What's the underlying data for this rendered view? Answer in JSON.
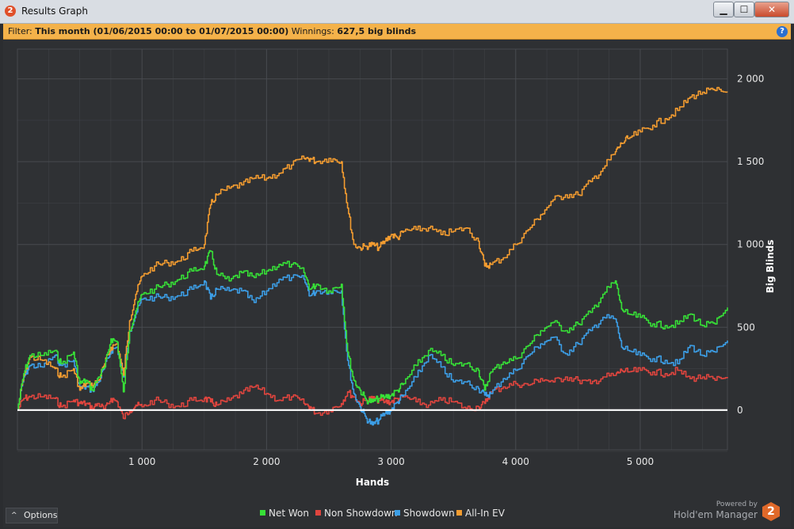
{
  "window": {
    "title": "Results Graph",
    "app_icon": "hm2-logo-icon",
    "controls": {
      "minimize": "▁",
      "maximize": "☐",
      "close": "✕"
    }
  },
  "filter": {
    "prefix": "Filter:",
    "range": "This month (01/06/2015 00:00 to 01/07/2015 00:00)",
    "winnings_label": "Winnings:",
    "winnings_value": "627,5 big blinds",
    "help": "?"
  },
  "footer": {
    "options_label": "Options",
    "powered_by": "Powered by",
    "brand": "Hold'em Manager",
    "brand_logo_text": "2"
  },
  "colors": {
    "net_won": "#37e037",
    "non_showdown": "#e0453e",
    "showdown": "#3c9ee6",
    "all_in_ev": "#f39c30",
    "zero_line": "#ffffff",
    "grid": "#4a4d52",
    "text": "#e8e8e8"
  },
  "chart_data": {
    "type": "line",
    "title": "",
    "xlabel": "Hands",
    "ylabel": "Big Blinds",
    "xlim": [
      0,
      5700
    ],
    "ylim": [
      -240,
      2180
    ],
    "x_ticks": [
      1000,
      2000,
      3000,
      4000,
      5000
    ],
    "x_tick_labels": [
      "1 000",
      "2 000",
      "3 000",
      "4 000",
      "5 000"
    ],
    "y_ticks": [
      0,
      500,
      1000,
      1500,
      2000
    ],
    "y_tick_labels": [
      "0",
      "500",
      "1 000",
      "1 500",
      "2 000"
    ],
    "grid": true,
    "legend": "bottom-center",
    "x": [
      0,
      50,
      100,
      200,
      300,
      350,
      450,
      500,
      550,
      600,
      650,
      700,
      750,
      800,
      850,
      900,
      950,
      1000,
      1100,
      1200,
      1300,
      1400,
      1500,
      1550,
      1600,
      1700,
      1800,
      1900,
      2000,
      2100,
      2200,
      2300,
      2350,
      2400,
      2500,
      2600,
      2650,
      2700,
      2750,
      2800,
      2850,
      2900,
      2950,
      3000,
      3050,
      3100,
      3200,
      3300,
      3400,
      3500,
      3600,
      3700,
      3750,
      3800,
      3900,
      4000,
      4100,
      4200,
      4300,
      4400,
      4500,
      4600,
      4700,
      4800,
      4850,
      4900,
      5000,
      5100,
      5200,
      5300,
      5400,
      5500,
      5600,
      5700
    ],
    "series": [
      {
        "name": "Net Won",
        "color": "#37e037",
        "values": [
          0,
          220,
          330,
          330,
          360,
          280,
          350,
          160,
          180,
          120,
          200,
          260,
          430,
          410,
          110,
          480,
          600,
          700,
          730,
          760,
          790,
          840,
          870,
          960,
          820,
          780,
          830,
          800,
          840,
          880,
          880,
          830,
          730,
          760,
          720,
          760,
          350,
          180,
          120,
          60,
          50,
          70,
          80,
          90,
          120,
          160,
          270,
          360,
          330,
          270,
          280,
          240,
          120,
          230,
          290,
          310,
          390,
          480,
          530,
          480,
          520,
          590,
          700,
          780,
          610,
          580,
          560,
          520,
          510,
          520,
          580,
          510,
          520,
          620
        ]
      },
      {
        "name": "Non Showdown",
        "color": "#e0453e",
        "values": [
          0,
          70,
          80,
          80,
          70,
          20,
          60,
          40,
          40,
          10,
          40,
          0,
          70,
          50,
          -50,
          0,
          30,
          20,
          60,
          40,
          20,
          60,
          70,
          50,
          30,
          60,
          100,
          140,
          100,
          60,
          80,
          40,
          20,
          -20,
          0,
          40,
          110,
          80,
          40,
          60,
          70,
          60,
          50,
          50,
          70,
          80,
          50,
          30,
          60,
          50,
          10,
          20,
          40,
          110,
          140,
          160,
          150,
          190,
          170,
          200,
          180,
          160,
          200,
          210,
          240,
          230,
          240,
          230,
          220,
          240,
          190,
          200,
          180,
          200
        ]
      },
      {
        "name": "Showdown",
        "color": "#3c9ee6",
        "values": [
          0,
          200,
          270,
          260,
          330,
          270,
          300,
          130,
          140,
          120,
          170,
          260,
          360,
          380,
          200,
          480,
          580,
          670,
          680,
          680,
          690,
          730,
          780,
          670,
          730,
          720,
          720,
          650,
          720,
          790,
          800,
          790,
          690,
          720,
          720,
          720,
          300,
          100,
          20,
          -50,
          -90,
          -60,
          -20,
          0,
          50,
          90,
          200,
          330,
          260,
          170,
          170,
          130,
          90,
          100,
          190,
          240,
          330,
          400,
          440,
          340,
          400,
          480,
          560,
          550,
          380,
          360,
          330,
          310,
          300,
          280,
          390,
          330,
          350,
          420
        ]
      },
      {
        "name": "All-In EV",
        "color": "#f39c30",
        "values": [
          0,
          210,
          320,
          300,
          250,
          200,
          250,
          120,
          160,
          150,
          180,
          280,
          380,
          400,
          210,
          540,
          700,
          810,
          870,
          890,
          900,
          960,
          1000,
          1240,
          1300,
          1340,
          1360,
          1400,
          1400,
          1430,
          1480,
          1520,
          1520,
          1500,
          1520,
          1500,
          1220,
          1000,
          980,
          990,
          1000,
          980,
          1020,
          1060,
          1040,
          1080,
          1090,
          1100,
          1060,
          1080,
          1100,
          1020,
          870,
          880,
          920,
          1000,
          1090,
          1180,
          1270,
          1300,
          1300,
          1380,
          1460,
          1560,
          1610,
          1640,
          1680,
          1720,
          1760,
          1810,
          1890,
          1920,
          1930,
          1920
        ]
      }
    ]
  }
}
